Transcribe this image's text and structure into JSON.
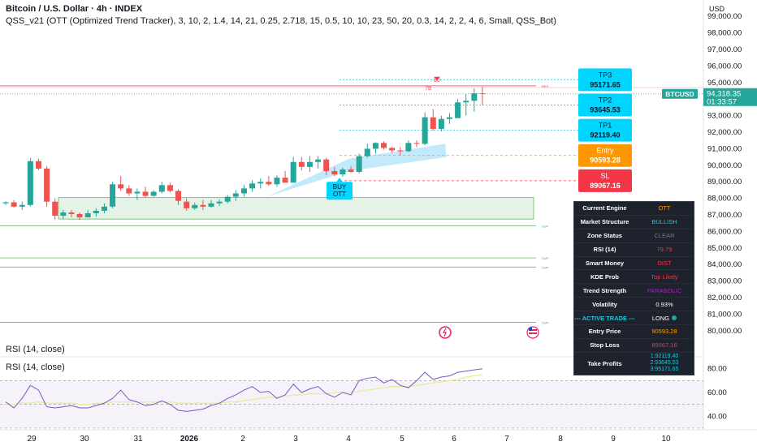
{
  "header": {
    "title": "Bitcoin / U.S. Dollar · 4h · INDEX",
    "indicator": "QSS_v21 (OTT (Optimized Trend Tracker), 3, 10, 2, 1.4, 14, 21, 0.25, 2.718, 15, 0.5, 10, 10, 23, 50, 20, 0.3, 14, 2, 2, 4, 6, Small, QSS_Bot)"
  },
  "currency": "USD",
  "rsi": {
    "label_top": "RSI (14, close)",
    "label_pane": "RSI (14, close)"
  },
  "chart_data": {
    "type": "candlestick",
    "symbol": "BTCUSD",
    "last_price": "94,318.35",
    "countdown": "01:33:57",
    "ylim": [
      79500,
      99600
    ],
    "price_ticks": [
      99000,
      98000,
      97000,
      96000,
      95000,
      94000,
      93000,
      92000,
      91000,
      90000,
      89000,
      88000,
      87000,
      86000,
      85000,
      84000,
      83000,
      82000,
      81000,
      80000
    ],
    "x_ticks": [
      "29",
      "30",
      "31",
      "2026",
      "2",
      "3",
      "4",
      "5",
      "6",
      "7",
      "8",
      "9",
      "10"
    ],
    "candles": [
      [
        87700,
        87820,
        87600,
        87760
      ],
      [
        87760,
        87900,
        87450,
        87500
      ],
      [
        87500,
        87800,
        87300,
        87600
      ],
      [
        87600,
        90450,
        87500,
        90250
      ],
      [
        90250,
        90400,
        89700,
        89800
      ],
      [
        89800,
        89950,
        87500,
        87800
      ],
      [
        87800,
        88000,
        86700,
        86950
      ],
      [
        86950,
        87300,
        86750,
        87150
      ],
      [
        87150,
        87300,
        86850,
        87050
      ],
      [
        87050,
        87150,
        86700,
        86850
      ],
      [
        86850,
        87300,
        86850,
        87100
      ],
      [
        87100,
        87400,
        86900,
        87250
      ],
      [
        87250,
        87700,
        87100,
        87500
      ],
      [
        87500,
        89000,
        87400,
        88850
      ],
      [
        88850,
        89350,
        88450,
        88600
      ],
      [
        88600,
        88800,
        88150,
        88300
      ],
      [
        88300,
        88600,
        87900,
        88400
      ],
      [
        88400,
        88700,
        88050,
        88150
      ],
      [
        88150,
        88500,
        88100,
        88400
      ],
      [
        88400,
        89000,
        88300,
        88800
      ],
      [
        88800,
        88950,
        88350,
        88450
      ],
      [
        88450,
        88550,
        87600,
        87850
      ],
      [
        87800,
        88000,
        87250,
        87400
      ],
      [
        87400,
        87750,
        87300,
        87600
      ],
      [
        87600,
        87900,
        87300,
        87500
      ],
      [
        87500,
        87900,
        87450,
        87700
      ],
      [
        87700,
        87950,
        87550,
        87800
      ],
      [
        87800,
        88200,
        87700,
        88100
      ],
      [
        88100,
        88500,
        87850,
        88300
      ],
      [
        88300,
        88800,
        88100,
        88600
      ],
      [
        88600,
        89100,
        88400,
        88900
      ],
      [
        88900,
        89200,
        88600,
        89000
      ],
      [
        89000,
        89350,
        88750,
        88850
      ],
      [
        88850,
        89400,
        88700,
        89250
      ],
      [
        89250,
        89650,
        88950,
        88950
      ],
      [
        88950,
        90500,
        88950,
        90200
      ],
      [
        90200,
        90500,
        89700,
        89900
      ],
      [
        89900,
        90550,
        89600,
        90200
      ],
      [
        90200,
        90550,
        89800,
        90350
      ],
      [
        90350,
        90450,
        89400,
        89650
      ],
      [
        89650,
        89900,
        89350,
        89450
      ],
      [
        89450,
        89850,
        89300,
        89750
      ],
      [
        89750,
        89950,
        89550,
        89600
      ],
      [
        89600,
        90700,
        89500,
        90550
      ],
      [
        90550,
        91300,
        90450,
        91000
      ],
      [
        91000,
        91400,
        90700,
        91350
      ],
      [
        91350,
        91450,
        90950,
        91050
      ],
      [
        91050,
        91100,
        90750,
        90900
      ],
      [
        90900,
        91100,
        90600,
        90850
      ],
      [
        90850,
        91500,
        90800,
        91350
      ],
      [
        91350,
        91500,
        91100,
        91300
      ],
      [
        91300,
        93200,
        91200,
        92900
      ],
      [
        92900,
        93400,
        92100,
        92200
      ],
      [
        92200,
        93000,
        92050,
        92800
      ],
      [
        92800,
        93150,
        92500,
        92900
      ],
      [
        92850,
        94000,
        92850,
        93800
      ],
      [
        93800,
        94300,
        93000,
        93900
      ],
      [
        93900,
        94650,
        93250,
        94350
      ],
      [
        94350,
        94750,
        93650,
        94318
      ]
    ],
    "levels": [
      {
        "name": "TP3",
        "value": "95171.65",
        "price": 95171.65,
        "color": "#26c6da"
      },
      {
        "name": "TP2",
        "value": "93645.53",
        "price": 93645.53,
        "color": "#26c6da"
      },
      {
        "name": "TP1",
        "value": "92119.40",
        "price": 92119.4,
        "color": "#26c6da"
      },
      {
        "name": "Entry",
        "value": "90593.28",
        "price": 90593.28,
        "color": "#ff9800"
      },
      {
        "name": "SL",
        "value": "89067.16",
        "price": 89067.16,
        "color": "#f23645"
      }
    ],
    "res_label": "RES",
    "sup_label": "SUP",
    "res_price": 94800,
    "sup_levels": [
      86350,
      84400,
      83850,
      80500
    ],
    "demand_zone": [
      86750,
      88050
    ],
    "rsi_marks": [
      "78",
      "80"
    ],
    "rsi_ticks": [
      80,
      60,
      40
    ],
    "rsi_ylim": [
      32,
      88
    ],
    "rsi_values": [
      52,
      47,
      55,
      66,
      62,
      48,
      47,
      48,
      49,
      47,
      47,
      49,
      51,
      55,
      62,
      54,
      52,
      49,
      50,
      53,
      50,
      45,
      44,
      45,
      46,
      49,
      51,
      55,
      58,
      62,
      65,
      60,
      61,
      55,
      58,
      67,
      60,
      63,
      65,
      59,
      56,
      60,
      58,
      70,
      72,
      73,
      68,
      71,
      66,
      64,
      70,
      77,
      71,
      73,
      74,
      77,
      78,
      79,
      80
    ],
    "rsi_ma": [
      50,
      50,
      51,
      51,
      52,
      51,
      51,
      51,
      51,
      50,
      50,
      51,
      51,
      52,
      52,
      52,
      52,
      52,
      52,
      52,
      52,
      51,
      51,
      51,
      51,
      51,
      51,
      52,
      52,
      53,
      54,
      55,
      56,
      56,
      57,
      58,
      58,
      59,
      59,
      59,
      60,
      60,
      60,
      61,
      62,
      63,
      64,
      65,
      65,
      65,
      66,
      67,
      68,
      69,
      70,
      71,
      73,
      74,
      75
    ]
  },
  "signal": {
    "line1": "BUY",
    "line2": "OTT"
  },
  "panel": {
    "rows": [
      {
        "k": "Current Engine",
        "v": "OTT",
        "c": "#ff9800"
      },
      {
        "k": "Market Structure",
        "v": "BULLISH",
        "c": "#26c6da"
      },
      {
        "k": "Zone Status",
        "v": "CLEAR",
        "c": "#787b86"
      },
      {
        "k": "RSI (14)",
        "v": "79.79",
        "c": "#f23645"
      },
      {
        "k": "Smart Money",
        "v": "DIST",
        "c": "#f23645"
      },
      {
        "k": "KDE Prob",
        "v": "Top Likely",
        "c": "#f23645"
      },
      {
        "k": "Trend Strength",
        "v": "PARABOLIC",
        "c": "#9c27b0"
      },
      {
        "k": "Volatility",
        "v": "0.93%",
        "c": "#ffffff"
      },
      {
        "k": "--- ACTIVE TRADE ---",
        "v": "LONG",
        "c": "#ffffff"
      },
      {
        "k": "Entry Price",
        "v": "90593.28",
        "c": "#ff9800"
      },
      {
        "k": "Stop Loss",
        "v": "89067.16",
        "c": "#f23645"
      }
    ],
    "tp_label": "Take Profits",
    "tps": [
      "1:92119.40",
      "2:93645.53",
      "3:95171.65"
    ]
  },
  "colors": {
    "up": "#26a69a",
    "down": "#ef5350",
    "tp": "#00d4ff",
    "entry": "#ff9800",
    "sl": "#f23645",
    "zone": "#4caf50"
  }
}
